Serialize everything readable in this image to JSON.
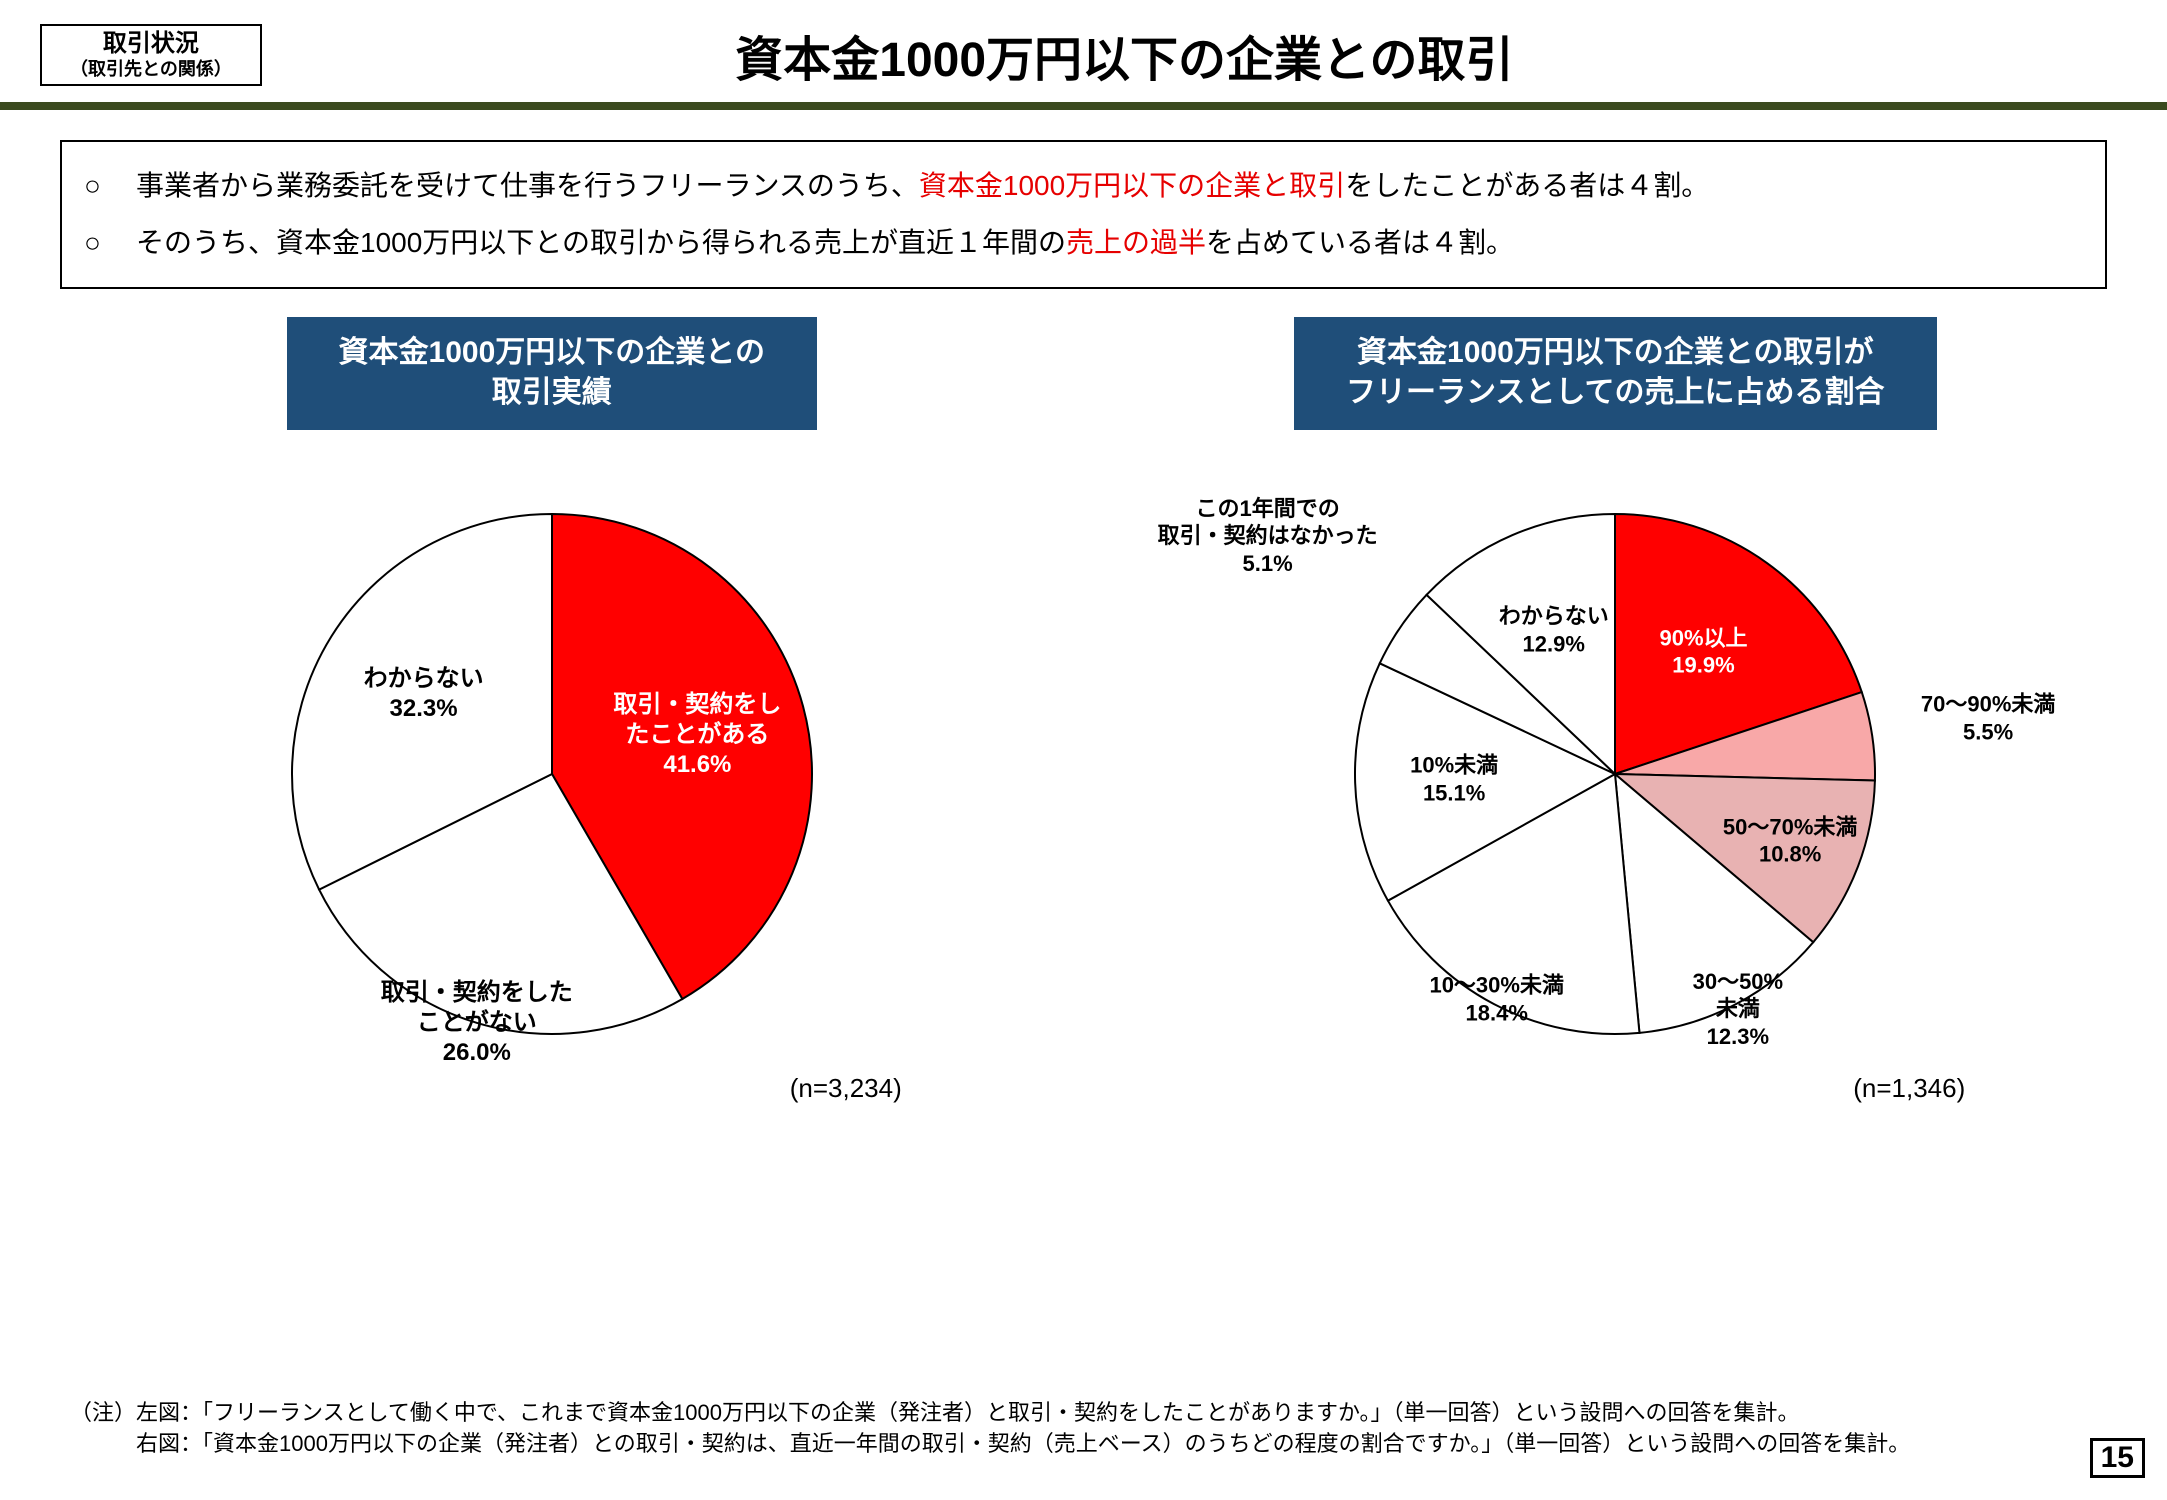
{
  "header": {
    "tag_line1": "取引状況",
    "tag_line2": "（取引先との関係）",
    "title": "資本金1000万円以下の企業との取引"
  },
  "summary": {
    "item1_plain1": "事業者から業務委託を受けて仕事を行うフリーランスのうち、",
    "item1_hl": "資本金1000万円以下の企業と取引",
    "item1_plain2": "をしたことがある者は４割。",
    "item2_plain1": "そのうち、資本金1000万円以下との取引から得られる売上が直近１年間の",
    "item2_hl": "売上の過半",
    "item2_plain2": "を占めている者は４割。"
  },
  "chart_left": {
    "title_l1": "資本金1000万円以下の企業との",
    "title_l2": "取引実績",
    "n_label": "(n=3,234)",
    "type": "pie",
    "radius": 260,
    "stroke": "#000000",
    "stroke_width": 2,
    "slices": [
      {
        "label_l1": "取引・契約をし",
        "label_l2": "たことがある",
        "value_label": "41.6%",
        "value": 41.6,
        "fill": "#ff0000",
        "text_color": "white",
        "inside": true
      },
      {
        "label_l1": "取引・契約をした",
        "label_l2": "ことがない",
        "value_label": "26.0%",
        "value": 26.0,
        "fill": "#ffffff",
        "text_color": "black",
        "inside": false,
        "out_angle_offset": 0,
        "out_r": 1.0
      },
      {
        "label_l1": "わからない",
        "value_label": "32.3%",
        "value": 32.3,
        "fill": "#ffffff",
        "text_color": "black",
        "inside": true
      }
    ]
  },
  "chart_right": {
    "title_l1": "資本金1000万円以下の企業との取引が",
    "title_l2": "フリーランスとしての売上に占める割合",
    "n_label": "(n=1,346)",
    "type": "pie",
    "radius": 260,
    "stroke": "#000000",
    "stroke_width": 2,
    "slices": [
      {
        "label_l1": "90%以上",
        "value_label": "19.9%",
        "value": 19.9,
        "fill": "#ff0000",
        "text_color": "white",
        "inside": true
      },
      {
        "label_l1": "70～90%未満",
        "value_label": "5.5%",
        "value": 5.5,
        "fill": "#f8a8a8",
        "text_color": "black",
        "inside": false,
        "out_r": 1.45
      },
      {
        "label_l1": "50～70%未満",
        "value_label": "10.8%",
        "value": 10.8,
        "fill": "#e8b2b2",
        "text_color": "black",
        "inside": true,
        "in_r": 0.72
      },
      {
        "label_l1": "30～50%",
        "label_l2": "未満",
        "value_label": "12.3%",
        "value": 12.3,
        "fill": "#ffffff",
        "text_color": "black",
        "inside": false,
        "out_r": 1.02
      },
      {
        "label_l1": "10～30%未満",
        "value_label": "18.4%",
        "value": 18.4,
        "fill": "#ffffff",
        "text_color": "black",
        "inside": false,
        "out_r": 0.98
      },
      {
        "label_l1": "10%未満",
        "value_label": "15.1%",
        "value": 15.1,
        "fill": "#ffffff",
        "text_color": "black",
        "inside": true,
        "in_r": 0.62
      },
      {
        "label_l1": "この1年間での",
        "label_l2": "取引・契約はなかった",
        "value_label": "5.1%",
        "value": 5.1,
        "fill": "#ffffff",
        "text_color": "black",
        "inside": false,
        "out_r": 1.62
      },
      {
        "label_l1": "わからない",
        "value_label": "12.9%",
        "value": 12.9,
        "fill": "#ffffff",
        "text_color": "black",
        "inside": true,
        "in_r": 0.6
      }
    ]
  },
  "footnote": {
    "label": "（注）",
    "line1": "左図：「フリーランスとして働く中で、これまで資本金1000万円以下の企業（発注者）と取引・契約をしたことがありますか。」（単一回答）という設問への回答を集計。",
    "line2": "右図：「資本金1000万円以下の企業（発注者）との取引・契約は、直近一年間の取引・契約（売上ベース）のうちどの程度の割合ですか。」（単一回答）という設問への回答を集計。"
  },
  "page_number": "15"
}
